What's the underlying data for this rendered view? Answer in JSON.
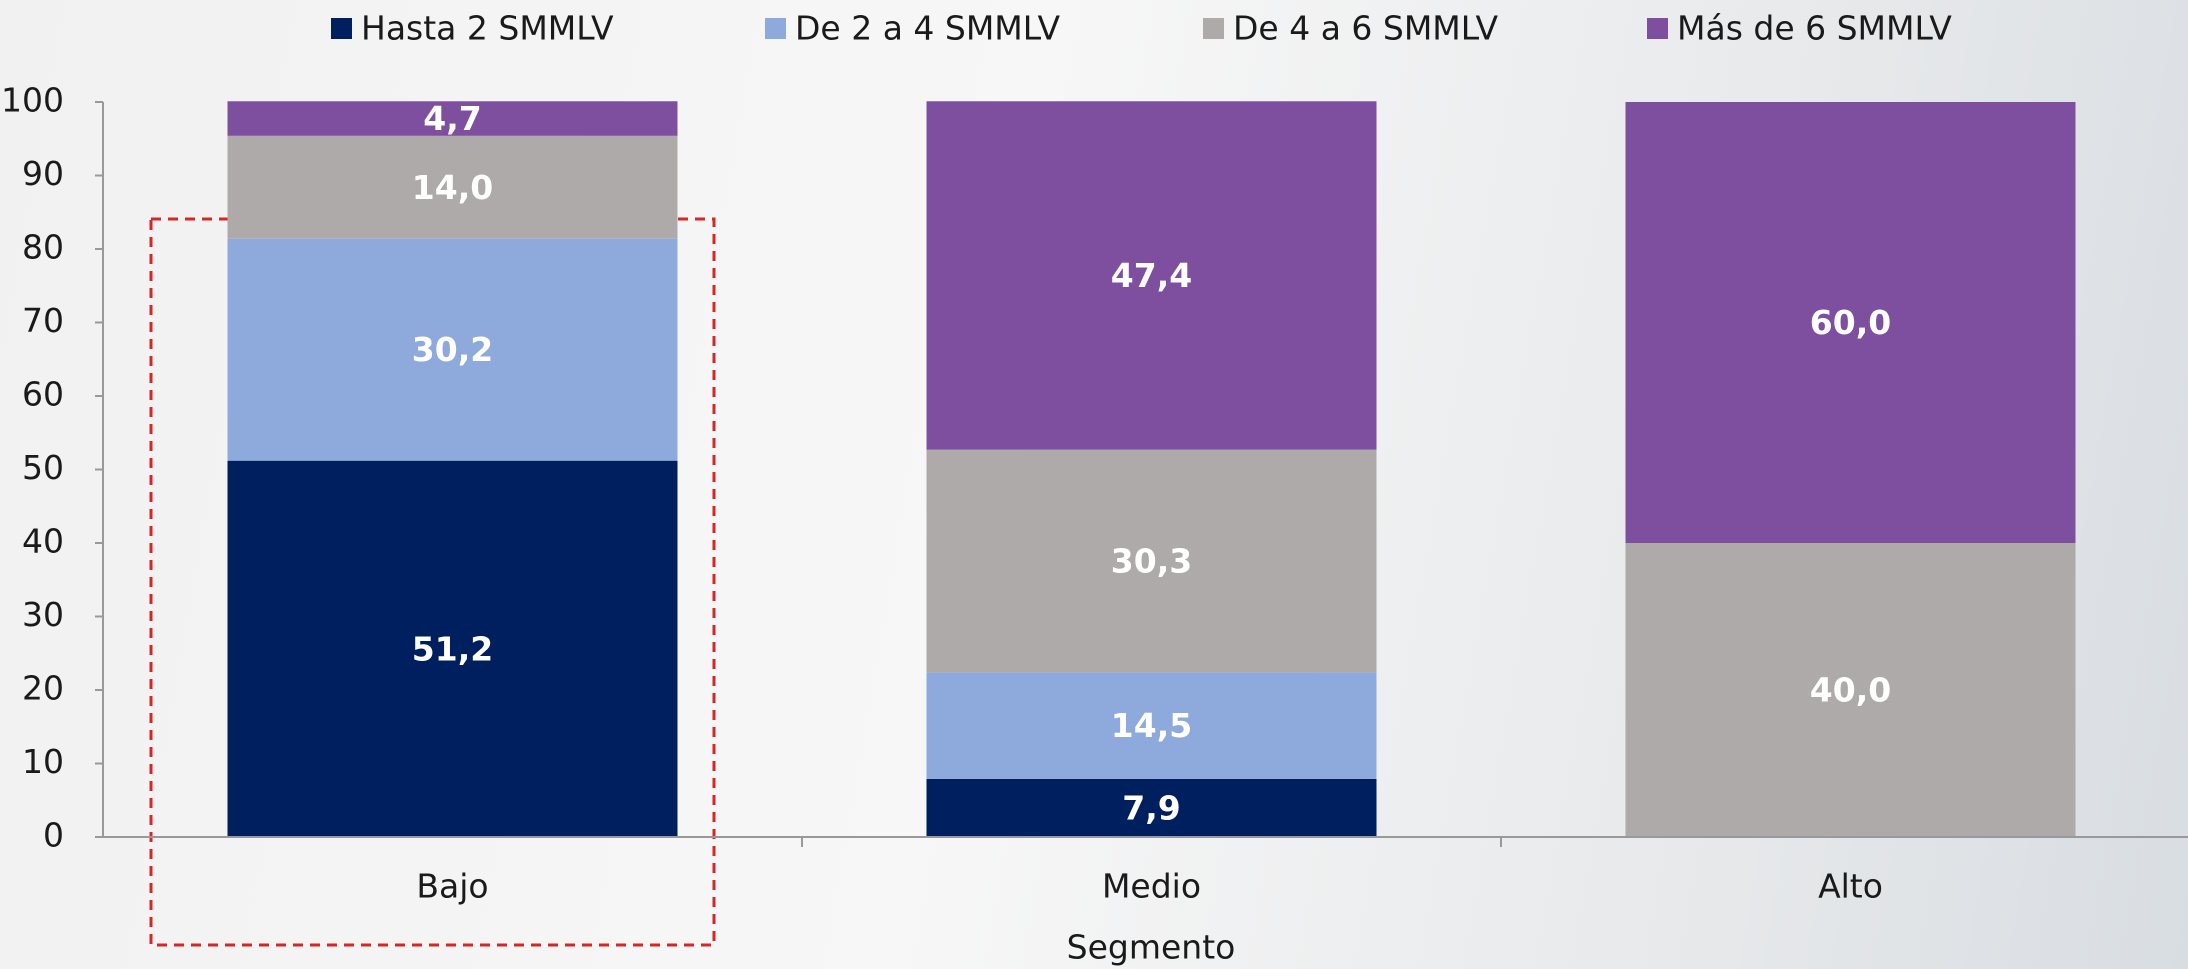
{
  "chart_data": {
    "type": "stacked_bar",
    "x_label": "Segmento",
    "categories": [
      "Bajo",
      "Medio",
      "Alto"
    ],
    "series": [
      {
        "name": "Hasta 2 SMMLV",
        "color": "#001f5f",
        "values": [
          51.2,
          7.9,
          null
        ],
        "value_labels": [
          "51,2",
          "7,9",
          null
        ]
      },
      {
        "name": "De 2 a 4 SMMLV",
        "color": "#8eaadc",
        "values": [
          30.2,
          14.5,
          null
        ],
        "value_labels": [
          "30,2",
          "14,5",
          null
        ]
      },
      {
        "name": "De 4 a 6 SMMLV",
        "color": "#aeaaaa",
        "values": [
          14.0,
          30.3,
          40.0
        ],
        "value_labels": [
          "14,0",
          "30,3",
          "40,0"
        ]
      },
      {
        "name": "Más de 6 SMMLV",
        "color": "#7f4f9f",
        "values": [
          4.7,
          47.4,
          60.0
        ],
        "value_labels": [
          "4,7",
          "47,4",
          "60,0"
        ]
      }
    ],
    "ylim": [
      0,
      100
    ],
    "yticks": [
      0,
      10,
      20,
      30,
      40,
      50,
      60,
      70,
      80,
      90,
      100
    ],
    "legend": "top"
  }
}
